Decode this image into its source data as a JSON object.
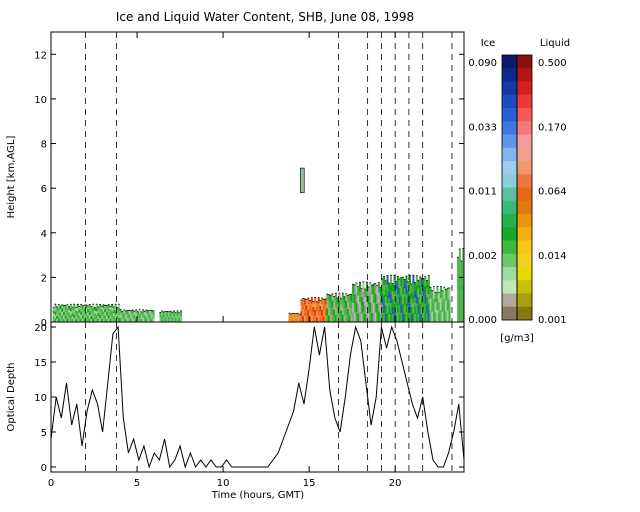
{
  "chart_data": [
    {
      "type": "heatmap",
      "title": "Ice and Liquid Water Content, SHB, June 08, 1998",
      "xlabel": "",
      "ylabel": "Height [km,AGL]",
      "xlim": [
        0,
        24
      ],
      "ylim": [
        0,
        13
      ],
      "y_ticks": [
        "0",
        "2",
        "4",
        "6",
        "8",
        "10",
        "12"
      ],
      "dashed_lines_hours": [
        2.0,
        3.8,
        16.7,
        18.4,
        19.2,
        20.0,
        20.8,
        21.6,
        23.3
      ],
      "segments": [
        {
          "start": 0.1,
          "end": 4.0,
          "top": 0.8,
          "colors": [
            "#62b462",
            "#3db53d",
            "#9cd49c",
            "#14a514",
            "#7fc77f"
          ]
        },
        {
          "start": 4.0,
          "end": 6.0,
          "top": 0.55,
          "colors": [
            "#3db53d",
            "#9cd49c",
            "#62b462"
          ]
        },
        {
          "start": 6.3,
          "end": 7.6,
          "top": 0.5,
          "colors": [
            "#7fc77f",
            "#3db53d"
          ]
        },
        {
          "start": 13.8,
          "end": 14.5,
          "top": 0.4,
          "colors": [
            "#e6801a",
            "#f0a040"
          ]
        },
        {
          "start": 14.5,
          "end": 16.0,
          "top": 1.1,
          "colors": [
            "#e6801a",
            "#e03020",
            "#f0a040",
            "#ee6a22"
          ]
        },
        {
          "start": 16.0,
          "end": 17.5,
          "top": 1.3,
          "colors": [
            "#3db53d",
            "#14a514",
            "#b4a890",
            "#62b462"
          ]
        },
        {
          "start": 17.5,
          "end": 19.2,
          "top": 1.8,
          "colors": [
            "#9a9a9a",
            "#b8b8b8",
            "#3db53d",
            "#14a514"
          ]
        },
        {
          "start": 19.2,
          "end": 22.0,
          "top": 2.1,
          "colors": [
            "#14a514",
            "#3db53d",
            "#2855d0",
            "#14a514",
            "#62b462"
          ]
        },
        {
          "start": 22.0,
          "end": 23.2,
          "top": 1.6,
          "colors": [
            "#62b462",
            "#9cd49c",
            "#3db53d"
          ]
        },
        {
          "start": 23.6,
          "end": 24.0,
          "top": 3.3,
          "colors": [
            "#62b462",
            "#3db53d"
          ]
        }
      ],
      "small_features": [
        {
          "time": 14.6,
          "bottom": 5.8,
          "top": 6.9,
          "color": "#9cba9c"
        }
      ]
    },
    {
      "type": "line",
      "xlabel": "Time (hours, GMT)",
      "ylabel": "Optical Depth",
      "xlim": [
        0,
        24
      ],
      "ylim": [
        0,
        20
      ],
      "x_ticks": [
        "0",
        "5",
        "10",
        "15",
        "20"
      ],
      "y_ticks": [
        "0",
        "5",
        "10",
        "15",
        "20"
      ],
      "dashed_lines_hours": [
        2.0,
        3.8,
        16.7,
        18.4,
        19.2,
        20.0,
        20.8,
        21.6,
        23.3
      ],
      "series": [
        {
          "color": "#000000",
          "x": [
            0.0,
            0.3,
            0.6,
            0.9,
            1.2,
            1.5,
            1.8,
            2.1,
            2.4,
            2.7,
            3.0,
            3.3,
            3.6,
            3.9,
            4.2,
            4.5,
            4.8,
            5.1,
            5.4,
            5.7,
            6.0,
            6.3,
            6.6,
            6.9,
            7.2,
            7.5,
            7.8,
            8.1,
            8.4,
            8.7,
            9.0,
            9.3,
            9.6,
            9.9,
            10.2,
            10.5,
            10.8,
            11.1,
            11.4,
            11.7,
            12.0,
            12.3,
            12.6,
            12.9,
            13.2,
            13.5,
            13.8,
            14.1,
            14.4,
            14.7,
            15.0,
            15.3,
            15.6,
            15.9,
            16.2,
            16.5,
            16.8,
            17.1,
            17.4,
            17.7,
            18.0,
            18.3,
            18.6,
            18.9,
            19.2,
            19.5,
            19.8,
            20.1,
            20.4,
            20.7,
            21.0,
            21.3,
            21.6,
            21.9,
            22.2,
            22.5,
            22.8,
            23.1,
            23.4,
            23.7,
            24.0
          ],
          "values": [
            4,
            10,
            7,
            12,
            6,
            9,
            3,
            8,
            11,
            9,
            5,
            12,
            19,
            20,
            7,
            2,
            4,
            1,
            3,
            0,
            2,
            1,
            4,
            0,
            1,
            3,
            0,
            2,
            0,
            1,
            0,
            1,
            0,
            0,
            1,
            0,
            0,
            0,
            0,
            0,
            0,
            0,
            0,
            1,
            2,
            4,
            6,
            8,
            12,
            9,
            14,
            20,
            16,
            20,
            11,
            7,
            5,
            10,
            16,
            20,
            18,
            12,
            6,
            10,
            20,
            17,
            20,
            18,
            15,
            12,
            9,
            7,
            10,
            5,
            1,
            0,
            0,
            2,
            5,
            9,
            1
          ]
        }
      ]
    }
  ],
  "colorbar": {
    "ice_title": "Ice",
    "liquid_title": "Liquid",
    "units": "[g/m3]",
    "ice_labels": [
      "0.090",
      "0.033",
      "0.011",
      "0.002",
      "0.000"
    ],
    "liquid_labels": [
      "0.500",
      "0.170",
      "0.064",
      "0.014",
      "0.001"
    ],
    "ice_colors": [
      "#0a1a6a",
      "#0d2a8a",
      "#1438a8",
      "#1c4cc4",
      "#2860d6",
      "#3c78e0",
      "#5c96e6",
      "#80b4ec",
      "#9cccf0",
      "#8ad0d8",
      "#5cc0a0",
      "#3cb878",
      "#28b050",
      "#1aa82a",
      "#3cb83c",
      "#6cc86c",
      "#9cdc9c",
      "#c0e8b8",
      "#b0a898",
      "#8a7860"
    ],
    "liquid_colors": [
      "#8a1010",
      "#b01818",
      "#d42020",
      "#ec3a3a",
      "#f45a5a",
      "#f47a7a",
      "#f49a9a",
      "#f0a090",
      "#f09870",
      "#ec7840",
      "#e46818",
      "#e07a10",
      "#e8940c",
      "#f0b010",
      "#f4c818",
      "#f0d020",
      "#e8d800",
      "#c8c000",
      "#a8a010",
      "#887810"
    ]
  }
}
